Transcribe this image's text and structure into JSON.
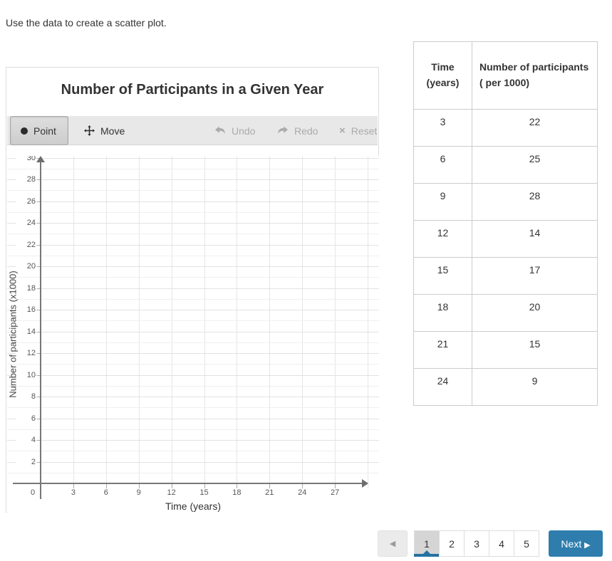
{
  "page": {
    "instruction": "Use the data to create a scatter plot."
  },
  "chart": {
    "toolbar": {
      "point_label": "Point",
      "move_label": "Move",
      "undo_label": "Undo",
      "redo_label": "Redo",
      "reset_label": "Reset",
      "active_tool": "Point",
      "disabled_tools": [
        "Undo",
        "Redo",
        "Reset"
      ]
    }
  },
  "chart_data": {
    "type": "scatter",
    "title": "Number of Participants in a Given Year",
    "xlabel": "Time (years)",
    "ylabel": "Number of participants (x1000)",
    "xlim": [
      0,
      30
    ],
    "ylim": [
      0,
      30
    ],
    "x_tick_step": 3,
    "y_tick_step": 2,
    "x_tick_labels": [
      0,
      3,
      6,
      9,
      12,
      15,
      18,
      21,
      24,
      27
    ],
    "y_tick_labels": [
      2,
      4,
      6,
      8,
      10,
      12,
      14,
      16,
      18,
      20,
      22,
      24,
      26,
      28,
      30
    ],
    "grid": true,
    "points": []
  },
  "table": {
    "headers": [
      "Time (years)",
      "Number of participants ( per 1000)"
    ],
    "rows": [
      [
        "3",
        "22"
      ],
      [
        "6",
        "25"
      ],
      [
        "9",
        "28"
      ],
      [
        "12",
        "14"
      ],
      [
        "15",
        "17"
      ],
      [
        "18",
        "20"
      ],
      [
        "21",
        "15"
      ],
      [
        "24",
        "9"
      ]
    ]
  },
  "pagination": {
    "prev_icon": "◀",
    "pages": [
      "1",
      "2",
      "3",
      "4",
      "5"
    ],
    "active_page": "1",
    "next_label": "Next",
    "next_icon": "▶"
  },
  "colors": {
    "accent_blue": "#2e7dad",
    "active_page_indicator": "#2471a3",
    "active_page_bg": "#d5d5d5",
    "toolbar_bg": "#e8e8e8",
    "grid_major": "#e2e2e2",
    "grid_minor": "#efefef",
    "axis": "#777777"
  }
}
